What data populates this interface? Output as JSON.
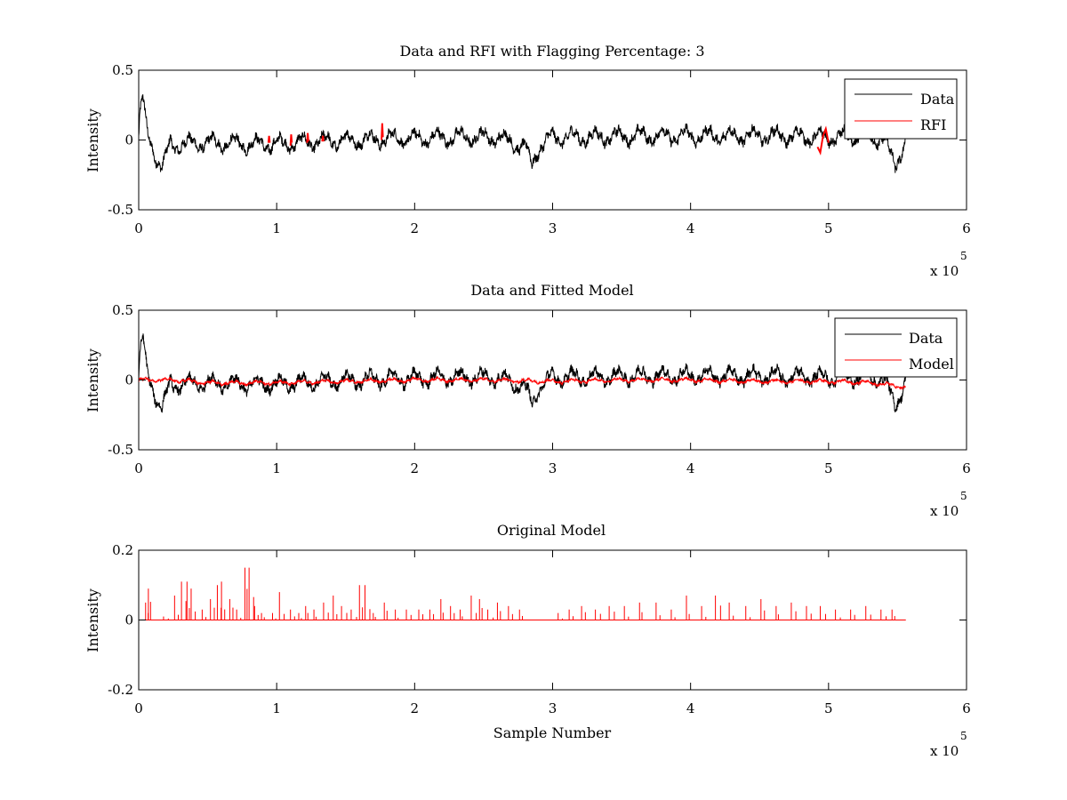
{
  "figure": {
    "colors": {
      "data": "#000000",
      "rfi": "#ff0000",
      "model": "#ff0000",
      "axes": "#000000",
      "background": "#ffffff"
    }
  },
  "chart_data": [
    {
      "type": "line",
      "title": "Data and RFI with Flagging Percentage: 3",
      "xlabel": "",
      "ylabel": "Intensity",
      "xlim": [
        0,
        600000
      ],
      "ylim": [
        -0.5,
        0.5
      ],
      "xticks": [
        0,
        100000,
        200000,
        300000,
        400000,
        500000,
        600000
      ],
      "xtick_labels": [
        "0",
        "1",
        "2",
        "3",
        "4",
        "5",
        "6"
      ],
      "yticks": [
        -0.5,
        0,
        0.5
      ],
      "ytick_labels": [
        "-0.5",
        "0",
        "0.5"
      ],
      "x_exponent": {
        "base": "x 10",
        "power": "5"
      },
      "legend": {
        "position": "top-right",
        "entries": [
          "Data",
          "RFI"
        ]
      },
      "grid": false,
      "series": [
        {
          "name": "Data",
          "color": "#000000",
          "x": [
            0,
            1000,
            3000,
            6000,
            10000,
            14000,
            17000,
            20000,
            23000,
            25000,
            30000,
            50000,
            80000,
            100000,
            130000,
            160000,
            180000,
            200000,
            230000,
            260000,
            280000,
            285000,
            290000,
            300000,
            330000,
            360000,
            400000,
            430000,
            460000,
            490000,
            520000,
            540000,
            548000,
            552000,
            556000
          ],
          "y": [
            0.02,
            0.18,
            0.3,
            0.05,
            -0.05,
            -0.15,
            -0.2,
            -0.12,
            -0.02,
            -0.04,
            -0.03,
            -0.02,
            -0.03,
            -0.03,
            -0.01,
            0.0,
            0.01,
            0.01,
            0.02,
            0.02,
            -0.05,
            -0.18,
            -0.05,
            0.02,
            0.02,
            0.03,
            0.03,
            0.03,
            0.03,
            0.02,
            0.02,
            0.01,
            -0.18,
            -0.1,
            0.0
          ],
          "noise": 0.05
        },
        {
          "name": "RFI",
          "color": "#ff0000",
          "segments": [
            {
              "x": [
                94000,
                94500,
                95000
              ],
              "y": [
                -0.02,
                0.03,
                -0.02
              ]
            },
            {
              "x": [
                110000,
                110500,
                111000
              ],
              "y": [
                -0.04,
                0.04,
                -0.02
              ]
            },
            {
              "x": [
                122000,
                122500,
                123000
              ],
              "y": [
                -0.02,
                0.05,
                -0.01
              ]
            },
            {
              "x": [
                133000,
                133500,
                134000
              ],
              "y": [
                -0.01,
                0.03,
                -0.01
              ]
            },
            {
              "x": [
                176000,
                176500,
                177000
              ],
              "y": [
                0.0,
                0.12,
                0.02
              ]
            },
            {
              "x": [
                492000,
                494000,
                496000,
                498000,
                500000
              ],
              "y": [
                -0.05,
                -0.09,
                0.03,
                0.08,
                -0.02
              ]
            }
          ]
        }
      ]
    },
    {
      "type": "line",
      "title": "Data and Fitted Model",
      "xlabel": "",
      "ylabel": "Intensity",
      "xlim": [
        0,
        600000
      ],
      "ylim": [
        -0.5,
        0.5
      ],
      "xticks": [
        0,
        100000,
        200000,
        300000,
        400000,
        500000,
        600000
      ],
      "xtick_labels": [
        "0",
        "1",
        "2",
        "3",
        "4",
        "5",
        "6"
      ],
      "yticks": [
        -0.5,
        0,
        0.5
      ],
      "ytick_labels": [
        "-0.5",
        "0",
        "0.5"
      ],
      "x_exponent": {
        "base": "x 10",
        "power": "5"
      },
      "legend": {
        "position": "top-right",
        "entries": [
          "Data",
          "Model"
        ]
      },
      "grid": false,
      "series": [
        {
          "name": "Data",
          "color": "#000000",
          "x": [
            0,
            1000,
            3000,
            6000,
            10000,
            14000,
            17000,
            20000,
            23000,
            25000,
            30000,
            50000,
            80000,
            100000,
            130000,
            160000,
            180000,
            200000,
            230000,
            260000,
            280000,
            285000,
            290000,
            300000,
            330000,
            360000,
            400000,
            430000,
            460000,
            490000,
            520000,
            540000,
            548000,
            552000,
            556000
          ],
          "y": [
            0.02,
            0.18,
            0.3,
            0.05,
            -0.05,
            -0.15,
            -0.2,
            -0.12,
            -0.02,
            -0.04,
            -0.03,
            -0.02,
            -0.03,
            -0.03,
            -0.01,
            0.0,
            0.01,
            0.01,
            0.02,
            0.02,
            -0.05,
            -0.18,
            -0.05,
            0.02,
            0.02,
            0.03,
            0.03,
            0.03,
            0.03,
            0.02,
            0.02,
            0.01,
            -0.18,
            -0.1,
            0.0
          ],
          "noise": 0.05
        },
        {
          "name": "Model",
          "color": "#ff0000",
          "x": [
            0,
            25000,
            50000,
            100000,
            150000,
            200000,
            250000,
            300000,
            350000,
            400000,
            450000,
            500000,
            530000,
            556000
          ],
          "y": [
            0.0,
            0.0,
            -0.02,
            -0.02,
            -0.01,
            0.0,
            0.0,
            -0.01,
            0.0,
            0.0,
            -0.01,
            -0.01,
            -0.02,
            -0.05
          ],
          "noise": 0.012
        }
      ]
    },
    {
      "type": "line",
      "title": "Original Model",
      "xlabel": "Sample Number",
      "ylabel": "Intensity",
      "xlim": [
        0,
        600000
      ],
      "ylim": [
        -0.2,
        0.2
      ],
      "xticks": [
        0,
        100000,
        200000,
        300000,
        400000,
        500000,
        600000
      ],
      "xtick_labels": [
        "0",
        "1",
        "2",
        "3",
        "4",
        "5",
        "6"
      ],
      "yticks": [
        -0.2,
        0,
        0.2
      ],
      "ytick_labels": [
        "-0.2",
        "0",
        "0.2"
      ],
      "x_exponent": {
        "base": "x 10",
        "power": "5"
      },
      "legend": null,
      "grid": false,
      "series": [
        {
          "color": "#ff0000",
          "baseline": 0,
          "x_range": [
            0,
            556000
          ],
          "spikes_x": [
            5000,
            7000,
            18000,
            26000,
            31000,
            35000,
            38000,
            46000,
            52000,
            57000,
            60000,
            66000,
            71000,
            77000,
            80000,
            84000,
            89000,
            97000,
            102000,
            110000,
            116000,
            121000,
            127000,
            134000,
            141000,
            147000,
            154000,
            160000,
            164000,
            170000,
            178000,
            186000,
            194000,
            203000,
            211000,
            219000,
            226000,
            233000,
            241000,
            247000,
            253000,
            260000,
            268000,
            276000,
            304000,
            312000,
            321000,
            331000,
            341000,
            352000,
            363000,
            375000,
            386000,
            397000,
            408000,
            418000,
            428000,
            440000,
            451000,
            462000,
            473000,
            484000,
            494000,
            505000,
            516000,
            527000,
            538000,
            546000
          ],
          "spikes_y": [
            0.05,
            0.09,
            0.01,
            0.07,
            0.11,
            0.11,
            0.09,
            0.03,
            0.06,
            0.1,
            0.11,
            0.06,
            0.03,
            0.15,
            0.15,
            0.04,
            0.02,
            0.02,
            0.08,
            0.03,
            0.02,
            0.04,
            0.03,
            0.05,
            0.07,
            0.04,
            0.03,
            0.1,
            0.1,
            0.02,
            0.05,
            0.03,
            0.03,
            0.03,
            0.03,
            0.06,
            0.04,
            0.03,
            0.07,
            0.06,
            0.03,
            0.05,
            0.04,
            0.03,
            0.02,
            0.03,
            0.04,
            0.03,
            0.04,
            0.04,
            0.05,
            0.05,
            0.03,
            0.07,
            0.04,
            0.07,
            0.05,
            0.04,
            0.06,
            0.04,
            0.05,
            0.04,
            0.04,
            0.03,
            0.03,
            0.04,
            0.03,
            0.03
          ]
        }
      ]
    }
  ]
}
